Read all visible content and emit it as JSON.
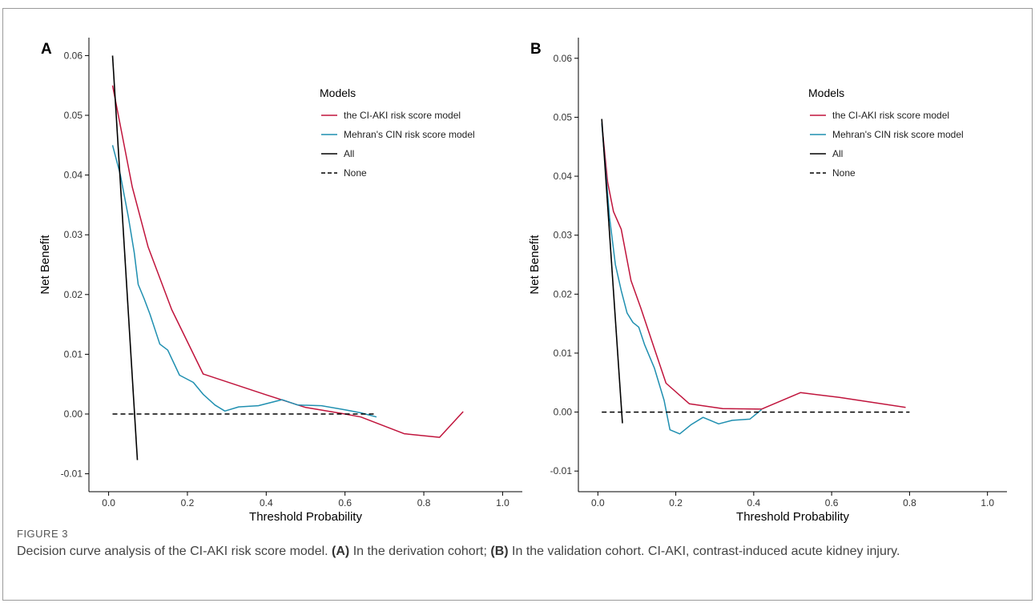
{
  "figure": {
    "label": "FIGURE 3",
    "caption": {
      "p1": "Decision curve analysis of the CI-AKI risk score model. ",
      "b1": "(A)",
      "p2": " In the derivation cohort; ",
      "b2": "(B)",
      "p3": " In the validation cohort. CI-AKI, contrast-induced acute kidney injury."
    }
  },
  "colors": {
    "ci_aki": "#c0143c",
    "mehran": "#1f8fb0",
    "all": "#000000",
    "none": "#000000"
  },
  "chart_data": [
    {
      "type": "line",
      "panel_label": "A",
      "xlabel": "Threshold Probability",
      "ylabel": "Net Benefit",
      "xlim": [
        -0.05,
        1.05
      ],
      "ylim": [
        -0.013,
        0.063
      ],
      "xticks": [
        "0.0",
        "0.2",
        "0.4",
        "0.6",
        "0.8",
        "1.0"
      ],
      "yticks": [
        "-0.01",
        "0.00",
        "0.01",
        "0.02",
        "0.03",
        "0.04",
        "0.05",
        "0.06"
      ],
      "grid": false,
      "legend": {
        "title": "Models",
        "position": "top-right"
      },
      "series": [
        {
          "name": "the CI-AKI risk score model",
          "color_key": "ci_aki",
          "dash": false,
          "x": [
            0.01,
            0.06,
            0.1,
            0.16,
            0.24,
            0.4,
            0.5,
            0.6,
            0.64,
            0.75,
            0.84,
            0.9
          ],
          "y": [
            0.055,
            0.038,
            0.028,
            0.0175,
            0.0067,
            0.0032,
            0.0011,
            0.0,
            -0.0005,
            -0.0033,
            -0.0039,
            0.0004
          ]
        },
        {
          "name": "Mehran's CIN risk score model",
          "color_key": "mehran",
          "dash": false,
          "x": [
            0.01,
            0.03,
            0.05,
            0.065,
            0.075,
            0.09,
            0.105,
            0.13,
            0.15,
            0.18,
            0.215,
            0.24,
            0.27,
            0.295,
            0.33,
            0.38,
            0.44,
            0.48,
            0.54,
            0.6,
            0.64,
            0.68
          ],
          "y": [
            0.045,
            0.04,
            0.033,
            0.027,
            0.0217,
            0.0193,
            0.0167,
            0.0117,
            0.0107,
            0.0065,
            0.0053,
            0.0033,
            0.0015,
            0.0005,
            0.0012,
            0.0014,
            0.0024,
            0.0015,
            0.0014,
            0.0007,
            0.0002,
            -0.0005
          ]
        },
        {
          "name": "All",
          "color_key": "all",
          "dash": false,
          "x": [
            0.01,
            0.073
          ],
          "y": [
            0.06,
            -0.0077
          ]
        },
        {
          "name": "None",
          "color_key": "none",
          "dash": true,
          "x": [
            0.01,
            0.68
          ],
          "y": [
            0.0,
            0.0
          ]
        }
      ]
    },
    {
      "type": "line",
      "panel_label": "B",
      "xlabel": "Threshold Probability",
      "ylabel": "Net Benefit",
      "xlim": [
        -0.05,
        1.05
      ],
      "ylim": [
        -0.0135,
        0.0635
      ],
      "xticks": [
        "0.0",
        "0.2",
        "0.4",
        "0.6",
        "0.8",
        "1.0"
      ],
      "yticks": [
        "-0.01",
        "0.00",
        "0.01",
        "0.02",
        "0.03",
        "0.04",
        "0.05",
        "0.06"
      ],
      "grid": false,
      "legend": {
        "title": "Models",
        "position": "top-right"
      },
      "series": [
        {
          "name": "the CI-AKI risk score model",
          "color_key": "ci_aki",
          "dash": false,
          "x": [
            0.01,
            0.025,
            0.04,
            0.06,
            0.085,
            0.11,
            0.145,
            0.175,
            0.235,
            0.32,
            0.42,
            0.52,
            0.62,
            0.7,
            0.79
          ],
          "y": [
            0.049,
            0.039,
            0.034,
            0.031,
            0.0223,
            0.0177,
            0.0108,
            0.0049,
            0.0014,
            0.0006,
            0.0005,
            0.0033,
            0.0025,
            0.0017,
            0.0008
          ]
        },
        {
          "name": "Mehran's CIN risk score model",
          "color_key": "mehran",
          "dash": false,
          "x": [
            0.01,
            0.03,
            0.045,
            0.06,
            0.075,
            0.09,
            0.105,
            0.12,
            0.145,
            0.17,
            0.185,
            0.21,
            0.24,
            0.27,
            0.31,
            0.345,
            0.39,
            0.42
          ],
          "y": [
            0.049,
            0.033,
            0.025,
            0.0206,
            0.0168,
            0.0152,
            0.0144,
            0.0114,
            0.0075,
            0.002,
            -0.003,
            -0.0037,
            -0.0021,
            -0.0009,
            -0.002,
            -0.0014,
            -0.0012,
            0.0004
          ]
        },
        {
          "name": "All",
          "color_key": "all",
          "dash": false,
          "x": [
            0.01,
            0.063
          ],
          "y": [
            0.0497,
            -0.0019
          ]
        },
        {
          "name": "None",
          "color_key": "none",
          "dash": true,
          "x": [
            0.01,
            0.8
          ],
          "y": [
            0.0,
            0.0
          ]
        }
      ]
    }
  ]
}
